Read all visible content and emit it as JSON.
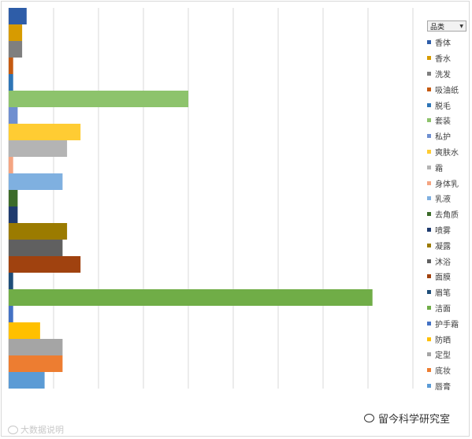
{
  "chart_data": {
    "type": "bar",
    "orientation": "horizontal",
    "legend_title": "品类",
    "legend_position": "right",
    "grid": true,
    "xlim": [
      0,
      1000
    ],
    "series": [
      {
        "name": "香体",
        "value": 40,
        "color": "#2e5da8"
      },
      {
        "name": "香水",
        "value": 30,
        "color": "#d79b00"
      },
      {
        "name": "洗发",
        "value": 30,
        "color": "#7f7f7f"
      },
      {
        "name": "吸油纸",
        "value": 10,
        "color": "#c55a11"
      },
      {
        "name": "脱毛",
        "value": 10,
        "color": "#2e75b6"
      },
      {
        "name": "套装",
        "value": 400,
        "color": "#8dc36c"
      },
      {
        "name": "私护",
        "value": 20,
        "color": "#6f8fd0"
      },
      {
        "name": "爽肤水",
        "value": 160,
        "color": "#ffcc33"
      },
      {
        "name": "霜",
        "value": 130,
        "color": "#b4b4b4"
      },
      {
        "name": "身体乳",
        "value": 10,
        "color": "#f4a582"
      },
      {
        "name": "乳液",
        "value": 120,
        "color": "#7fb0e0"
      },
      {
        "name": "去角质",
        "value": 20,
        "color": "#3c6b2a"
      },
      {
        "name": "喷雾",
        "value": 20,
        "color": "#1f3b6e"
      },
      {
        "name": "凝露",
        "value": 130,
        "color": "#9b7b00"
      },
      {
        "name": "沐浴",
        "value": 120,
        "color": "#606060"
      },
      {
        "name": "面膜",
        "value": 160,
        "color": "#a0420f"
      },
      {
        "name": "眉笔",
        "value": 10,
        "color": "#1f4e79"
      },
      {
        "name": "洁面",
        "value": 810,
        "color": "#70ad47"
      },
      {
        "name": "护手霜",
        "value": 10,
        "color": "#4472c4"
      },
      {
        "name": "防晒",
        "value": 70,
        "color": "#ffc000"
      },
      {
        "name": "定型",
        "value": 120,
        "color": "#a5a5a5"
      },
      {
        "name": "底妆",
        "value": 120,
        "color": "#ed7d31"
      },
      {
        "name": "唇膏",
        "value": 80,
        "color": "#5b9bd5"
      }
    ]
  },
  "watermark_left": "大数据说明",
  "watermark_right": "留今科学研究室"
}
